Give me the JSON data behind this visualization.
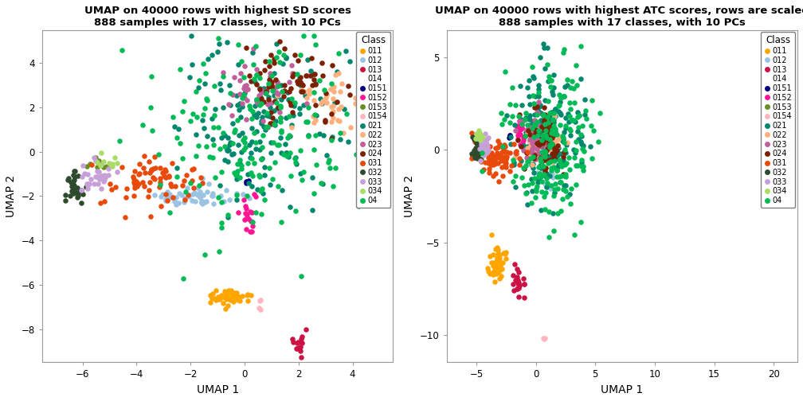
{
  "title1": "UMAP on 40000 rows with highest SD scores\n888 samples with 17 classes, with 10 PCs",
  "title2": "UMAP on 40000 rows with highest ATC scores, rows are scaled\n888 samples with 17 classes, with 10 PCs",
  "xlabel": "UMAP 1",
  "ylabel": "UMAP 2",
  "classes": [
    "011",
    "012",
    "013",
    "014",
    "0151",
    "0152",
    "0153",
    "0154",
    "021",
    "022",
    "023",
    "024",
    "031",
    "032",
    "033",
    "034",
    "04"
  ],
  "colors": {
    "011": "#FFA500",
    "012": "#9BC4E2",
    "013": "#CC1144",
    "014": "#FFFFFF",
    "0151": "#000080",
    "0152": "#FF1493",
    "0153": "#6B8E23",
    "0154": "#FFB6C1",
    "021": "#00876C",
    "022": "#FFB07C",
    "023": "#C0609A",
    "024": "#7B2000",
    "031": "#E84A0C",
    "032": "#2D4A2D",
    "033": "#C8A0D8",
    "034": "#AADD66",
    "04": "#00BB55"
  },
  "plot1_xlim": [
    -7.5,
    5.5
  ],
  "plot1_ylim": [
    -9.5,
    5.5
  ],
  "plot1_xticks": [
    -6,
    -4,
    -2,
    0,
    2,
    4
  ],
  "plot1_yticks": [
    -8,
    -6,
    -4,
    -2,
    0,
    2,
    4
  ],
  "plot2_xlim": [
    -7.5,
    22.0
  ],
  "plot2_ylim": [
    -11.5,
    6.5
  ],
  "plot2_xticks": [
    -5,
    0,
    5,
    10,
    15,
    20
  ],
  "plot2_yticks": [
    -10,
    -5,
    0,
    5
  ],
  "marker_size": 22,
  "alpha": 1.0
}
